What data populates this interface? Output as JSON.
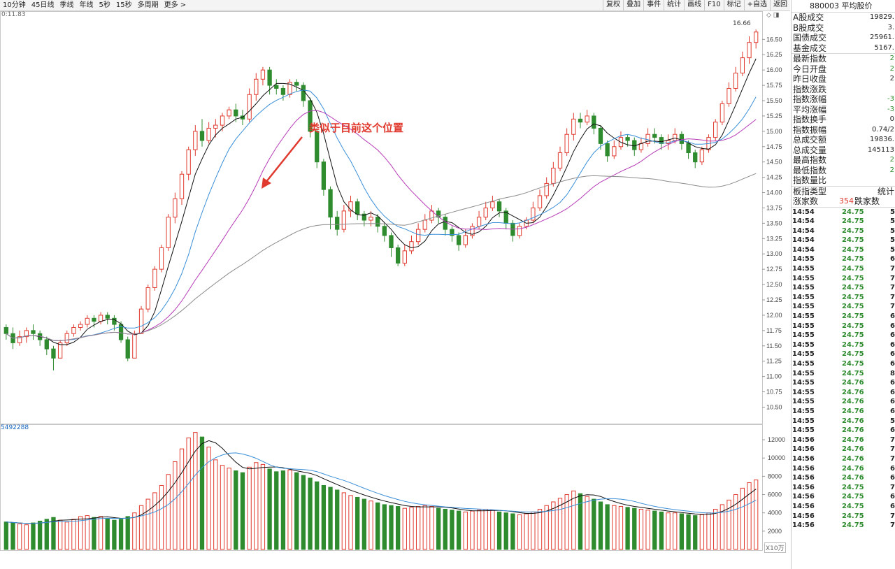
{
  "toolbar": {
    "periods": [
      "10分钟",
      "45日线",
      "季线",
      "年线",
      "5秒",
      "15秒",
      "多周期",
      "更多 >"
    ],
    "buttons": [
      "复权",
      "叠加",
      "事件",
      "统计",
      "画线",
      "F10",
      "标记",
      "+自选",
      "返回"
    ]
  },
  "chart": {
    "ma_readout": "0:11.83",
    "volume_readout": "5492288",
    "annotation": "类似于目前这个位置",
    "high_label": "16.66",
    "volume_unit": "X10万",
    "corner_icons": "◇ ◨",
    "colors": {
      "up": "#e03a2f",
      "down": "#2e8b2e",
      "ma5": "#111111",
      "ma10": "#3a8fd8",
      "ma20": "#b63ab6",
      "ma60": "#8c8c8c",
      "grid": "#e8e8e8"
    },
    "price_axis": [
      "16.50",
      "16.25",
      "16.00",
      "15.75",
      "15.50",
      "15.25",
      "15.00",
      "14.75",
      "14.50",
      "14.25",
      "14.00",
      "13.75",
      "13.50",
      "13.25",
      "13.00",
      "12.75",
      "12.50",
      "12.25",
      "12.00",
      "11.75",
      "11.50",
      "11.25",
      "11.00",
      "10.75",
      "10.50"
    ],
    "volume_axis": [
      "12000",
      "10000",
      "8000",
      "6000",
      "4000",
      "2000"
    ]
  },
  "chart_data": {
    "type": "candlestick",
    "price_range": [
      10.3,
      16.8
    ],
    "volume_range": [
      0,
      13000
    ],
    "candles_ohlc_vol": [
      [
        11.8,
        11.7,
        11.85,
        11.6,
        3000
      ],
      [
        11.7,
        11.55,
        11.8,
        11.45,
        2900
      ],
      [
        11.55,
        11.65,
        11.75,
        11.5,
        2800
      ],
      [
        11.65,
        11.75,
        11.8,
        11.55,
        2700
      ],
      [
        11.75,
        11.7,
        11.85,
        11.6,
        2900
      ],
      [
        11.7,
        11.6,
        11.75,
        11.5,
        3100
      ],
      [
        11.6,
        11.45,
        11.65,
        11.35,
        3300
      ],
      [
        11.45,
        11.3,
        11.5,
        11.1,
        3500
      ],
      [
        11.3,
        11.55,
        11.6,
        11.3,
        3200
      ],
      [
        11.55,
        11.7,
        11.75,
        11.5,
        3000
      ],
      [
        11.7,
        11.8,
        11.85,
        11.65,
        3300
      ],
      [
        11.8,
        11.85,
        11.9,
        11.75,
        3600
      ],
      [
        11.85,
        11.95,
        12.0,
        11.8,
        3700
      ],
      [
        11.95,
        11.9,
        12.0,
        11.8,
        3500
      ],
      [
        11.9,
        12.0,
        12.05,
        11.85,
        3600
      ],
      [
        12.0,
        11.95,
        12.05,
        11.85,
        3400
      ],
      [
        11.95,
        11.85,
        12.0,
        11.75,
        3200
      ],
      [
        11.85,
        11.6,
        11.9,
        11.55,
        3300
      ],
      [
        11.6,
        11.3,
        11.65,
        11.25,
        3600
      ],
      [
        11.3,
        11.7,
        11.75,
        11.3,
        4000
      ],
      [
        11.7,
        12.1,
        12.15,
        11.7,
        4800
      ],
      [
        12.1,
        12.45,
        12.5,
        12.05,
        5500
      ],
      [
        12.45,
        12.75,
        12.8,
        12.4,
        6200
      ],
      [
        12.75,
        13.1,
        13.15,
        12.7,
        7000
      ],
      [
        13.1,
        13.6,
        13.65,
        13.05,
        8200
      ],
      [
        13.6,
        13.9,
        14.0,
        13.5,
        9600
      ],
      [
        13.9,
        14.3,
        14.35,
        13.8,
        11000
      ],
      [
        14.3,
        14.7,
        14.75,
        14.2,
        12200
      ],
      [
        14.7,
        15.0,
        15.1,
        14.6,
        12800
      ],
      [
        15.0,
        14.85,
        15.2,
        14.75,
        12300
      ],
      [
        14.85,
        15.05,
        15.15,
        14.8,
        11200
      ],
      [
        15.05,
        15.1,
        15.2,
        14.9,
        9800
      ],
      [
        15.1,
        15.25,
        15.3,
        15.0,
        9200
      ],
      [
        15.25,
        15.35,
        15.4,
        15.2,
        8900
      ],
      [
        15.35,
        15.25,
        15.45,
        15.15,
        8600
      ],
      [
        15.25,
        15.2,
        15.35,
        15.1,
        8400
      ],
      [
        15.2,
        15.6,
        15.7,
        15.15,
        9000
      ],
      [
        15.6,
        15.85,
        15.95,
        15.5,
        9500
      ],
      [
        15.85,
        16.0,
        16.05,
        15.75,
        9300
      ],
      [
        16.0,
        15.75,
        16.05,
        15.6,
        8800
      ],
      [
        15.75,
        15.7,
        15.85,
        15.6,
        8500
      ],
      [
        15.7,
        15.6,
        15.75,
        15.5,
        8600
      ],
      [
        15.6,
        15.8,
        15.85,
        15.55,
        8700
      ],
      [
        15.8,
        15.75,
        15.85,
        15.65,
        8400
      ],
      [
        15.75,
        15.5,
        15.8,
        15.4,
        8100
      ],
      [
        15.5,
        15.0,
        15.55,
        14.9,
        7800
      ],
      [
        15.0,
        14.5,
        15.05,
        14.4,
        7400
      ],
      [
        14.5,
        14.05,
        14.55,
        13.95,
        7000
      ],
      [
        14.05,
        13.6,
        14.1,
        13.4,
        6800
      ],
      [
        13.6,
        13.4,
        13.7,
        13.3,
        6500
      ],
      [
        13.4,
        13.7,
        13.8,
        13.35,
        6200
      ],
      [
        13.7,
        13.85,
        13.95,
        13.6,
        5900
      ],
      [
        13.85,
        13.65,
        13.9,
        13.55,
        5700
      ],
      [
        13.65,
        13.55,
        13.7,
        13.45,
        5500
      ],
      [
        13.55,
        13.6,
        13.7,
        13.45,
        5300
      ],
      [
        13.6,
        13.45,
        13.65,
        13.35,
        5100
      ],
      [
        13.45,
        13.3,
        13.5,
        13.2,
        4900
      ],
      [
        13.3,
        13.1,
        13.35,
        12.95,
        4800
      ],
      [
        13.1,
        12.85,
        13.15,
        12.8,
        4700
      ],
      [
        12.85,
        13.05,
        13.15,
        12.8,
        4500
      ],
      [
        13.05,
        13.2,
        13.3,
        13.0,
        4600
      ],
      [
        13.2,
        13.4,
        13.5,
        13.15,
        4700
      ],
      [
        13.4,
        13.55,
        13.65,
        13.35,
        4800
      ],
      [
        13.55,
        13.7,
        13.8,
        13.5,
        4700
      ],
      [
        13.7,
        13.6,
        13.75,
        13.5,
        4500
      ],
      [
        13.6,
        13.4,
        13.65,
        13.3,
        4400
      ],
      [
        13.4,
        13.3,
        13.45,
        13.2,
        4300
      ],
      [
        13.3,
        13.15,
        13.35,
        13.05,
        4200
      ],
      [
        13.15,
        13.3,
        13.4,
        13.1,
        4100
      ],
      [
        13.3,
        13.45,
        13.5,
        13.25,
        4200
      ],
      [
        13.45,
        13.6,
        13.7,
        13.4,
        4300
      ],
      [
        13.6,
        13.75,
        13.85,
        13.55,
        4400
      ],
      [
        13.75,
        13.85,
        13.95,
        13.7,
        4300
      ],
      [
        13.85,
        13.7,
        13.9,
        13.6,
        4100
      ],
      [
        13.7,
        13.5,
        13.75,
        13.4,
        4000
      ],
      [
        13.5,
        13.3,
        13.55,
        13.2,
        3900
      ],
      [
        13.3,
        13.45,
        13.5,
        13.25,
        3800
      ],
      [
        13.45,
        13.55,
        13.6,
        13.4,
        3900
      ],
      [
        13.55,
        13.75,
        13.85,
        13.5,
        4100
      ],
      [
        13.75,
        13.95,
        14.05,
        13.7,
        4400
      ],
      [
        13.95,
        14.15,
        14.25,
        13.9,
        4800
      ],
      [
        14.15,
        14.4,
        14.5,
        14.1,
        5200
      ],
      [
        14.4,
        14.65,
        14.75,
        14.35,
        5600
      ],
      [
        14.65,
        14.95,
        15.05,
        14.6,
        6000
      ],
      [
        14.95,
        15.2,
        15.3,
        14.85,
        6400
      ],
      [
        15.2,
        15.15,
        15.3,
        15.05,
        6100
      ],
      [
        15.15,
        15.25,
        15.35,
        15.1,
        5800
      ],
      [
        15.25,
        15.05,
        15.3,
        14.95,
        5500
      ],
      [
        15.05,
        14.8,
        15.1,
        14.7,
        5200
      ],
      [
        14.8,
        14.6,
        14.85,
        14.5,
        4900
      ],
      [
        14.6,
        14.75,
        14.85,
        14.55,
        4800
      ],
      [
        14.75,
        14.9,
        15.0,
        14.7,
        4700
      ],
      [
        14.9,
        14.85,
        14.95,
        14.75,
        4600
      ],
      [
        14.85,
        14.7,
        14.9,
        14.6,
        4500
      ],
      [
        14.7,
        14.8,
        14.9,
        14.65,
        4400
      ],
      [
        14.8,
        14.95,
        15.05,
        14.75,
        4300
      ],
      [
        14.95,
        14.9,
        15.05,
        14.8,
        4200
      ],
      [
        14.9,
        14.8,
        14.95,
        14.7,
        4100
      ],
      [
        14.8,
        14.85,
        14.95,
        14.7,
        4000
      ],
      [
        14.85,
        14.95,
        15.05,
        14.8,
        4000
      ],
      [
        14.95,
        14.8,
        15.0,
        14.7,
        3900
      ],
      [
        14.8,
        14.65,
        14.85,
        14.55,
        3800
      ],
      [
        14.65,
        14.5,
        14.7,
        14.4,
        3700
      ],
      [
        14.5,
        14.7,
        14.75,
        14.45,
        3800
      ],
      [
        14.7,
        14.9,
        14.95,
        14.65,
        4000
      ],
      [
        14.9,
        15.15,
        15.2,
        14.85,
        4400
      ],
      [
        15.15,
        15.45,
        15.5,
        15.1,
        4900
      ],
      [
        15.45,
        15.7,
        15.8,
        15.4,
        5400
      ],
      [
        15.7,
        15.95,
        16.05,
        15.65,
        6000
      ],
      [
        15.95,
        16.2,
        16.3,
        15.9,
        6700
      ],
      [
        16.2,
        16.45,
        16.55,
        16.1,
        7300
      ],
      [
        16.45,
        16.62,
        16.66,
        16.35,
        7600
      ]
    ],
    "moving_averages": [
      "MA5",
      "MA10",
      "MA20",
      "MA60"
    ]
  },
  "index_panel": {
    "title": "880003 平均股价",
    "rows": [
      {
        "label": "A股成交",
        "value": "19829.",
        "cls": ""
      },
      {
        "label": "B股成交",
        "value": "3.",
        "cls": ""
      },
      {
        "label": "国债成交",
        "value": "25961.",
        "cls": ""
      },
      {
        "label": "基金成交",
        "value": "5167.",
        "cls": "sep"
      },
      {
        "label": "最新指数",
        "value": "2",
        "cls": "down"
      },
      {
        "label": "今日开盘",
        "value": "2",
        "cls": "down"
      },
      {
        "label": "昨日收盘",
        "value": "2",
        "cls": ""
      },
      {
        "label": "指数涨跌",
        "value": "",
        "cls": "down"
      },
      {
        "label": "指数涨幅",
        "value": "-3",
        "cls": "down"
      },
      {
        "label": "平均涨幅",
        "value": "-3",
        "cls": "down"
      },
      {
        "label": "指数换手",
        "value": "0",
        "cls": ""
      },
      {
        "label": "指数振幅",
        "value": "0.74/2",
        "cls": ""
      },
      {
        "label": "总成交额",
        "value": "19836.",
        "cls": ""
      },
      {
        "label": "总成交量",
        "value": "145113",
        "cls": ""
      },
      {
        "label": "最高指数",
        "value": "2",
        "cls": "down"
      },
      {
        "label": "最低指数",
        "value": "2",
        "cls": "down"
      },
      {
        "label": "指数量比",
        "value": "",
        "cls": "sep"
      }
    ],
    "board_type_label": "板指类型",
    "board_type_value": "统计",
    "rise_label": "涨家数",
    "rise_count": "354",
    "fall_label": "跌家数"
  },
  "ticks": [
    {
      "t": "14:54",
      "p": "24.75",
      "v": "5."
    },
    {
      "t": "14:54",
      "p": "24.75",
      "v": "5."
    },
    {
      "t": "14:54",
      "p": "24.75",
      "v": "5."
    },
    {
      "t": "14:54",
      "p": "24.75",
      "v": "5."
    },
    {
      "t": "14:54",
      "p": "24.75",
      "v": "5."
    },
    {
      "t": "14:55",
      "p": "24.75",
      "v": "6."
    },
    {
      "t": "14:55",
      "p": "24.75",
      "v": "7."
    },
    {
      "t": "14:55",
      "p": "24.75",
      "v": "7."
    },
    {
      "t": "14:55",
      "p": "24.75",
      "v": "7."
    },
    {
      "t": "14:55",
      "p": "24.75",
      "v": "7."
    },
    {
      "t": "14:55",
      "p": "24.75",
      "v": "7."
    },
    {
      "t": "14:55",
      "p": "24.75",
      "v": "6."
    },
    {
      "t": "14:55",
      "p": "24.75",
      "v": "6."
    },
    {
      "t": "14:55",
      "p": "24.75",
      "v": "6."
    },
    {
      "t": "14:55",
      "p": "24.75",
      "v": "6."
    },
    {
      "t": "14:55",
      "p": "24.75",
      "v": "6."
    },
    {
      "t": "14:55",
      "p": "24.75",
      "v": "6."
    },
    {
      "t": "14:55",
      "p": "24.75",
      "v": "8."
    },
    {
      "t": "14:55",
      "p": "24.76",
      "v": "6."
    },
    {
      "t": "14:55",
      "p": "24.76",
      "v": "6."
    },
    {
      "t": "14:55",
      "p": "24.76",
      "v": "6."
    },
    {
      "t": "14:55",
      "p": "24.76",
      "v": "6."
    },
    {
      "t": "14:55",
      "p": "24.76",
      "v": "5."
    },
    {
      "t": "14:55",
      "p": "24.76",
      "v": "6."
    },
    {
      "t": "14:56",
      "p": "24.76",
      "v": "7."
    },
    {
      "t": "14:56",
      "p": "24.76",
      "v": "7."
    },
    {
      "t": "14:56",
      "p": "24.76",
      "v": "7."
    },
    {
      "t": "14:56",
      "p": "24.76",
      "v": "6."
    },
    {
      "t": "14:56",
      "p": "24.76",
      "v": "6."
    },
    {
      "t": "14:56",
      "p": "24.75",
      "v": "7."
    },
    {
      "t": "14:56",
      "p": "24.75",
      "v": "6."
    },
    {
      "t": "14:56",
      "p": "24.75",
      "v": "6."
    },
    {
      "t": "14:56",
      "p": "24.75",
      "v": "7."
    },
    {
      "t": "14:56",
      "p": "24.75",
      "v": "7."
    }
  ]
}
